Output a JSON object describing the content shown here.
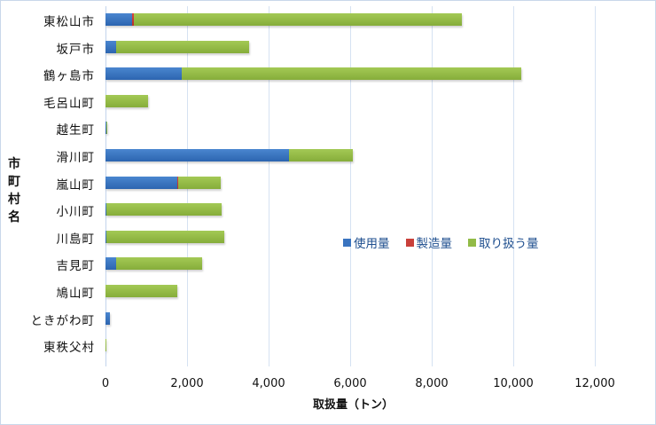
{
  "chart_data": {
    "type": "bar",
    "orientation": "horizontal",
    "stacked": true,
    "title": "",
    "xlabel": "取扱量（トン）",
    "ylabel": "市町村名",
    "xlim": [
      0,
      12000
    ],
    "x_ticks": [
      0,
      2000,
      4000,
      6000,
      8000,
      10000,
      12000
    ],
    "x_tick_labels": [
      "0",
      "2,000",
      "4,000",
      "6,000",
      "8,000",
      "10,000",
      "12,000"
    ],
    "grid": "vertical",
    "legend_position": "inside-right",
    "categories": [
      "東松山市",
      "坂戸市",
      "鶴ヶ島市",
      "毛呂山町",
      "越生町",
      "滑川町",
      "嵐山町",
      "小川町",
      "川島町",
      "吉見町",
      "鳩山町",
      "ときがわ町",
      "東秩父村"
    ],
    "series": [
      {
        "name": "使用量",
        "color": "#3a74c0",
        "values": [
          650,
          260,
          1880,
          0,
          5,
          4490,
          1750,
          30,
          30,
          250,
          0,
          100,
          0
        ]
      },
      {
        "name": "製造量",
        "color": "#c9403a",
        "values": [
          40,
          0,
          0,
          0,
          0,
          0,
          10,
          0,
          0,
          0,
          0,
          0,
          0
        ]
      },
      {
        "name": "取り扱う量",
        "color": "#92bb47",
        "values": [
          8060,
          3260,
          8320,
          1040,
          10,
          1570,
          1050,
          2810,
          2880,
          2130,
          1750,
          0,
          5
        ]
      }
    ]
  },
  "legend": {
    "items": [
      {
        "label": "使用量",
        "color": "#3a74c0"
      },
      {
        "label": "製造量",
        "color": "#c9403a"
      },
      {
        "label": "取り扱う量",
        "color": "#92bb47"
      }
    ]
  },
  "axes": {
    "x_title": "取扱量（トン）",
    "y_title": "市町村名"
  }
}
